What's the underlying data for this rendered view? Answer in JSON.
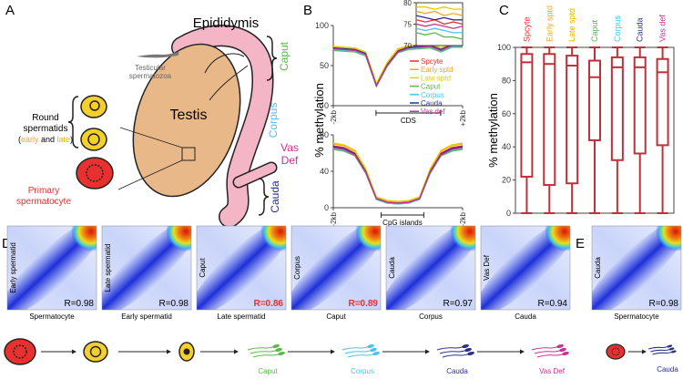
{
  "panel_labels": [
    "A",
    "B",
    "C",
    "D",
    "E"
  ],
  "diagram": {
    "epididymis": "Epididymis",
    "testis": "Testis",
    "caput": "Caput",
    "corpus": "Corpus",
    "vas_def": [
      "Vas",
      "Def"
    ],
    "cauda": "Cauda",
    "testicular_spermatozoa": [
      "Testicular",
      "spermatozoa"
    ],
    "round_spermatids": [
      "Round",
      "spermatids"
    ],
    "round_spermatids_stages": [
      "(",
      "early",
      " and ",
      "late",
      ")"
    ],
    "primary_spermatocyte": [
      "Primary",
      "spermatocyte"
    ]
  },
  "chart_data": [
    {
      "type": "line",
      "y_label": "% methylation",
      "annotation": "CDS",
      "x": [
        0,
        1,
        2,
        3,
        4,
        5,
        6,
        7,
        8,
        9,
        10,
        11,
        12
      ],
      "xlim": [
        0,
        12
      ],
      "xticks": [
        {
          "value": 0,
          "label": "-2kb"
        },
        {
          "value": 12,
          "label": "+2kb"
        }
      ],
      "ylim": [
        0,
        100
      ],
      "yticks": [
        0,
        50,
        100
      ],
      "legend": "right",
      "series": [
        {
          "name": "Spcyte",
          "color": "#e8312f",
          "values": [
            72,
            71,
            70,
            65,
            26,
            52,
            69,
            73,
            74,
            75,
            70,
            76,
            76
          ]
        },
        {
          "name": "Early sptd",
          "color": "#f5a623",
          "values": [
            73,
            72,
            71,
            66,
            27,
            53,
            70,
            74,
            75,
            76,
            71,
            77,
            77
          ]
        },
        {
          "name": "Late sptd",
          "color": "#e6cc00",
          "values": [
            74,
            73,
            72,
            67,
            28,
            54,
            71,
            75,
            76,
            77,
            72,
            78,
            78
          ]
        },
        {
          "name": "Caput",
          "color": "#5ab847",
          "values": [
            69,
            68,
            67,
            62,
            24,
            49,
            66,
            70,
            71,
            72,
            67,
            73,
            73
          ]
        },
        {
          "name": "Corpus",
          "color": "#4fc1e8",
          "values": [
            70,
            69,
            68,
            63,
            25,
            50,
            67,
            71,
            72,
            73,
            68,
            74,
            74
          ]
        },
        {
          "name": "Cauda",
          "color": "#2b2f8f",
          "values": [
            72,
            71,
            70,
            65,
            25,
            51,
            68,
            73,
            74,
            75,
            70,
            76,
            76
          ]
        },
        {
          "name": "Vas def",
          "color": "#c8318f",
          "values": [
            71,
            70,
            69,
            64,
            25,
            50,
            67,
            72,
            73,
            74,
            69,
            75,
            75
          ]
        }
      ]
    },
    {
      "type": "line",
      "x": [
        0,
        1,
        2,
        3,
        4,
        5
      ],
      "xlim": [
        0,
        5
      ],
      "ylim": [
        70,
        80
      ],
      "yticks": [
        70,
        75,
        80
      ],
      "series": [
        {
          "color": "#e8312f",
          "values": [
            76,
            75.5,
            76,
            75,
            75.5,
            75
          ]
        },
        {
          "color": "#f5a623",
          "values": [
            78,
            77.5,
            78,
            77,
            77.5,
            77
          ]
        },
        {
          "color": "#e6cc00",
          "values": [
            79,
            79,
            78.5,
            79,
            78.5,
            78.5
          ]
        },
        {
          "color": "#5ab847",
          "values": [
            73,
            72.5,
            73,
            72,
            72,
            71.5
          ]
        },
        {
          "color": "#4fc1e8",
          "values": [
            74,
            73.5,
            74,
            73.5,
            73,
            73
          ]
        },
        {
          "color": "#2b2f8f",
          "values": [
            77,
            76.5,
            76,
            76.5,
            76,
            76
          ]
        },
        {
          "color": "#c8318f",
          "values": [
            75,
            74.5,
            75,
            74.5,
            74,
            74.5
          ]
        }
      ]
    },
    {
      "type": "line",
      "annotation": "CpG islands",
      "x": [
        0,
        1,
        2,
        3,
        4,
        5,
        6,
        7,
        8,
        9,
        10,
        11,
        12
      ],
      "xlim": [
        0,
        12
      ],
      "xticks": [
        {
          "value": 0,
          "label": "-2kb"
        },
        {
          "value": 12,
          "label": "+2kb"
        }
      ],
      "ylim": [
        0,
        80
      ],
      "yticks": [
        0,
        40,
        80
      ],
      "series": [
        {
          "color": "#e8312f",
          "values": [
            68,
            66,
            60,
            40,
            10,
            6,
            5,
            6,
            10,
            40,
            60,
            66,
            68
          ]
        },
        {
          "color": "#f5a623",
          "values": [
            70,
            68,
            62,
            42,
            11,
            7,
            6,
            7,
            11,
            42,
            62,
            68,
            70
          ]
        },
        {
          "color": "#e6cc00",
          "values": [
            71,
            69,
            63,
            43,
            12,
            8,
            7,
            8,
            12,
            43,
            63,
            69,
            71
          ]
        },
        {
          "color": "#5ab847",
          "values": [
            64,
            62,
            57,
            38,
            9,
            5,
            4,
            5,
            9,
            38,
            57,
            62,
            64
          ]
        },
        {
          "color": "#4fc1e8",
          "values": [
            65,
            63,
            58,
            39,
            9,
            5,
            4,
            5,
            9,
            39,
            58,
            63,
            65
          ]
        },
        {
          "color": "#2b2f8f",
          "values": [
            67,
            65,
            59,
            40,
            10,
            6,
            5,
            6,
            10,
            40,
            59,
            65,
            67
          ]
        },
        {
          "color": "#c8318f",
          "values": [
            66,
            64,
            58,
            39,
            10,
            6,
            5,
            6,
            10,
            39,
            58,
            64,
            66
          ]
        }
      ]
    },
    {
      "type": "box",
      "y_label": "% methylation",
      "color": "#c0303a",
      "categories": [
        "Spcyte",
        "Early sptd",
        "Late sptd",
        "Caput",
        "Corpus",
        "Cauda",
        "Vas def"
      ],
      "category_colors": [
        "#e8312f",
        "#f5a623",
        "#e6b800",
        "#5ab847",
        "#4fc1e8",
        "#2b2f8f",
        "#c8318f"
      ],
      "ylim": [
        0,
        100
      ],
      "yticks": [
        0,
        20,
        40,
        60,
        80,
        100
      ],
      "min": [
        0,
        0,
        0,
        0,
        0,
        0,
        0
      ],
      "q1": [
        22,
        17,
        18,
        44,
        32,
        36,
        41
      ],
      "median": [
        91,
        90,
        89,
        82,
        88,
        88,
        85
      ],
      "q3": [
        96,
        96,
        95,
        92,
        94,
        94,
        93
      ],
      "max": [
        100,
        100,
        100,
        100,
        100,
        100,
        100
      ]
    }
  ],
  "correlations": [
    {
      "y_label": "Early spermatid",
      "x_label": "Spermatocyte",
      "r_label": "R=0.98",
      "r_color": "#000000"
    },
    {
      "y_label": "Late spermatid",
      "x_label": "Early spermatid",
      "r_label": "R=0.98",
      "r_color": "#000000"
    },
    {
      "y_label": "Caput",
      "x_label": "Late spermatid",
      "r_label": "R=0.86",
      "r_color": "#e8312f"
    },
    {
      "y_label": "Corpus",
      "x_label": "Caput",
      "r_label": "R=0.89",
      "r_color": "#e8312f"
    },
    {
      "y_label": "Cauda",
      "x_label": "Corpus",
      "r_label": "R=0.97",
      "r_color": "#000000"
    },
    {
      "y_label": "Vas Def",
      "x_label": "Cauda",
      "r_label": "R=0.94",
      "r_color": "#000000"
    }
  ],
  "lineage": [
    {
      "label": "Caput",
      "color": "#5ab847"
    },
    {
      "label": "Corpus",
      "color": "#4fc1e8"
    },
    {
      "label": "Cauda",
      "color": "#2b2f8f"
    },
    {
      "label": "Vas Def",
      "color": "#c8318f"
    }
  ],
  "panel_e": {
    "y_label": "Cauda",
    "x_label": "Spermatocyte",
    "r_label": "R=0.98",
    "r_color": "#000000",
    "icon_label": "Cauda",
    "icon_color": "#2b2f8f"
  }
}
